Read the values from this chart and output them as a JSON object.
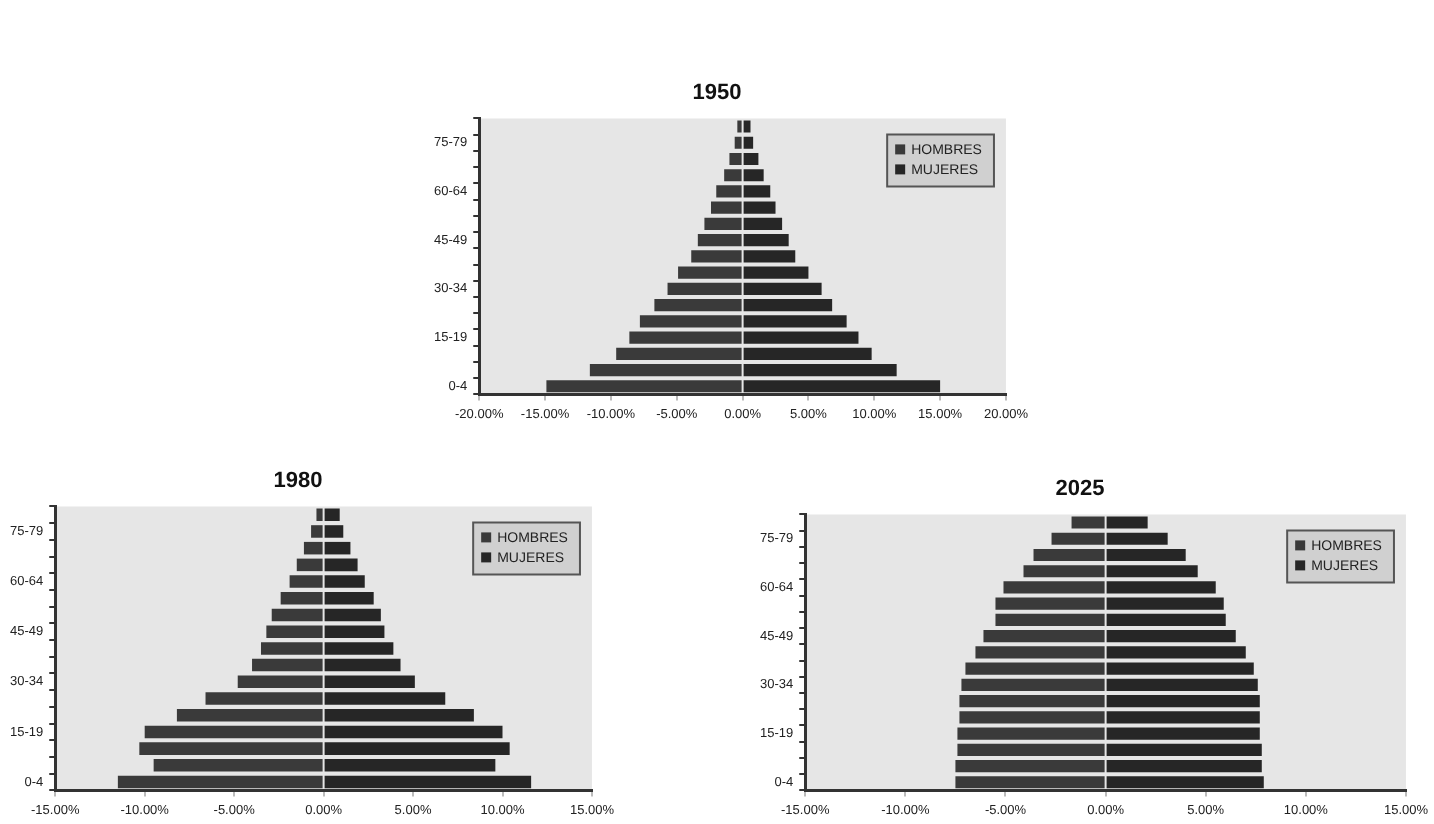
{
  "chart_data": [
    {
      "type": "bar",
      "title": "1950",
      "orientation": "horizontal",
      "stacked": true,
      "legend": "top right",
      "grid": false,
      "categories": [
        null,
        "75-79",
        null,
        null,
        "60-64",
        null,
        null,
        "45-49",
        null,
        null,
        "30-34",
        null,
        null,
        "15-19",
        null,
        null,
        "0-4"
      ],
      "series": [
        {
          "name": "HOMBRES",
          "color": "#3a3a3a",
          "values": [
            -0.4,
            -0.6,
            -1.0,
            -1.4,
            -2.0,
            -2.4,
            -2.9,
            -3.4,
            -3.9,
            -4.9,
            -5.7,
            -6.7,
            -7.8,
            -8.6,
            -9.6,
            -11.6,
            -14.9
          ]
        },
        {
          "name": "MUJERES",
          "color": "#262626",
          "values": [
            0.6,
            0.8,
            1.2,
            1.6,
            2.1,
            2.5,
            3.0,
            3.5,
            4.0,
            5.0,
            6.0,
            6.8,
            7.9,
            8.8,
            9.8,
            11.7,
            15.0
          ]
        }
      ],
      "xlim": [
        -20,
        20
      ],
      "xticks": [
        {
          "value": -20,
          "label": "-20.00%"
        },
        {
          "value": -15,
          "label": "-15.00%"
        },
        {
          "value": -10,
          "label": "-10.00%"
        },
        {
          "value": -5,
          "label": "-5.00%"
        },
        {
          "value": 0,
          "label": "0.00%"
        },
        {
          "value": 5,
          "label": "5.00%"
        },
        {
          "value": 10,
          "label": "10.00%"
        },
        {
          "value": 15,
          "label": "15.00%"
        },
        {
          "value": 20,
          "label": "20.00%"
        }
      ]
    },
    {
      "type": "bar",
      "title": "1980",
      "orientation": "horizontal",
      "stacked": true,
      "legend": "top right",
      "grid": false,
      "categories": [
        null,
        "75-79",
        null,
        null,
        "60-64",
        null,
        null,
        "45-49",
        null,
        null,
        "30-34",
        null,
        null,
        "15-19",
        null,
        null,
        "0-4"
      ],
      "series": [
        {
          "name": "HOMBRES",
          "color": "#3a3a3a",
          "values": [
            -0.4,
            -0.7,
            -1.1,
            -1.5,
            -1.9,
            -2.4,
            -2.9,
            -3.2,
            -3.5,
            -4.0,
            -4.8,
            -6.6,
            -8.2,
            -10.0,
            -10.3,
            -9.5,
            -11.5
          ]
        },
        {
          "name": "MUJERES",
          "color": "#262626",
          "values": [
            0.9,
            1.1,
            1.5,
            1.9,
            2.3,
            2.8,
            3.2,
            3.4,
            3.9,
            4.3,
            5.1,
            6.8,
            8.4,
            10.0,
            10.4,
            9.6,
            11.6
          ]
        }
      ],
      "xlim": [
        -15,
        15
      ],
      "xticks": [
        {
          "value": -15,
          "label": "-15.00%"
        },
        {
          "value": -10,
          "label": "-10.00%"
        },
        {
          "value": -5,
          "label": "-5.00%"
        },
        {
          "value": 0,
          "label": "0.00%"
        },
        {
          "value": 5,
          "label": "5.00%"
        },
        {
          "value": 10,
          "label": "10.00%"
        },
        {
          "value": 15,
          "label": "15.00%"
        }
      ]
    },
    {
      "type": "bar",
      "title": "2025",
      "orientation": "horizontal",
      "stacked": true,
      "legend": "top right",
      "grid": false,
      "categories": [
        null,
        "75-79",
        null,
        null,
        "60-64",
        null,
        null,
        "45-49",
        null,
        null,
        "30-34",
        null,
        null,
        "15-19",
        null,
        null,
        "0-4"
      ],
      "series": [
        {
          "name": "HOMBRES",
          "color": "#3a3a3a",
          "values": [
            -1.7,
            -2.7,
            -3.6,
            -4.1,
            -5.1,
            -5.5,
            -5.5,
            -6.1,
            -6.5,
            -7.0,
            -7.2,
            -7.3,
            -7.3,
            -7.4,
            -7.4,
            -7.5,
            -7.5
          ]
        },
        {
          "name": "MUJERES",
          "color": "#262626",
          "values": [
            2.1,
            3.1,
            4.0,
            4.6,
            5.5,
            5.9,
            6.0,
            6.5,
            7.0,
            7.4,
            7.6,
            7.7,
            7.7,
            7.7,
            7.8,
            7.8,
            7.9
          ]
        }
      ],
      "xlim": [
        -15,
        15
      ],
      "xticks": [
        {
          "value": -15,
          "label": "-15.00%"
        },
        {
          "value": -10,
          "label": "-10.00%"
        },
        {
          "value": -5,
          "label": "-5.00%"
        },
        {
          "value": 0,
          "label": "0.00%"
        },
        {
          "value": 5,
          "label": "5.00%"
        },
        {
          "value": 10,
          "label": "10.00%"
        },
        {
          "value": 15,
          "label": "15.00%"
        }
      ]
    }
  ]
}
